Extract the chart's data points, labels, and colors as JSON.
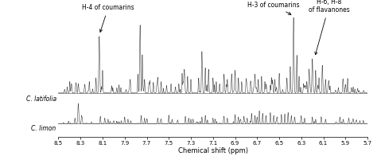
{
  "xlabel": "Chemical shift (ppm)",
  "x_min": 5.7,
  "x_max": 8.5,
  "x_ticks": [
    8.5,
    8.3,
    8.1,
    7.9,
    7.7,
    7.5,
    7.3,
    7.1,
    6.9,
    6.7,
    6.5,
    6.3,
    6.1,
    5.9,
    5.7
  ],
  "label1": "C. latifolia",
  "label2": "C. limon",
  "annotation1": "H-4 of coumarins",
  "annotation2": "H-3 of coumarins",
  "annotation3": "H-6, H-8\nof flavanones",
  "background_color": "#ffffff",
  "line_color": "#444444"
}
